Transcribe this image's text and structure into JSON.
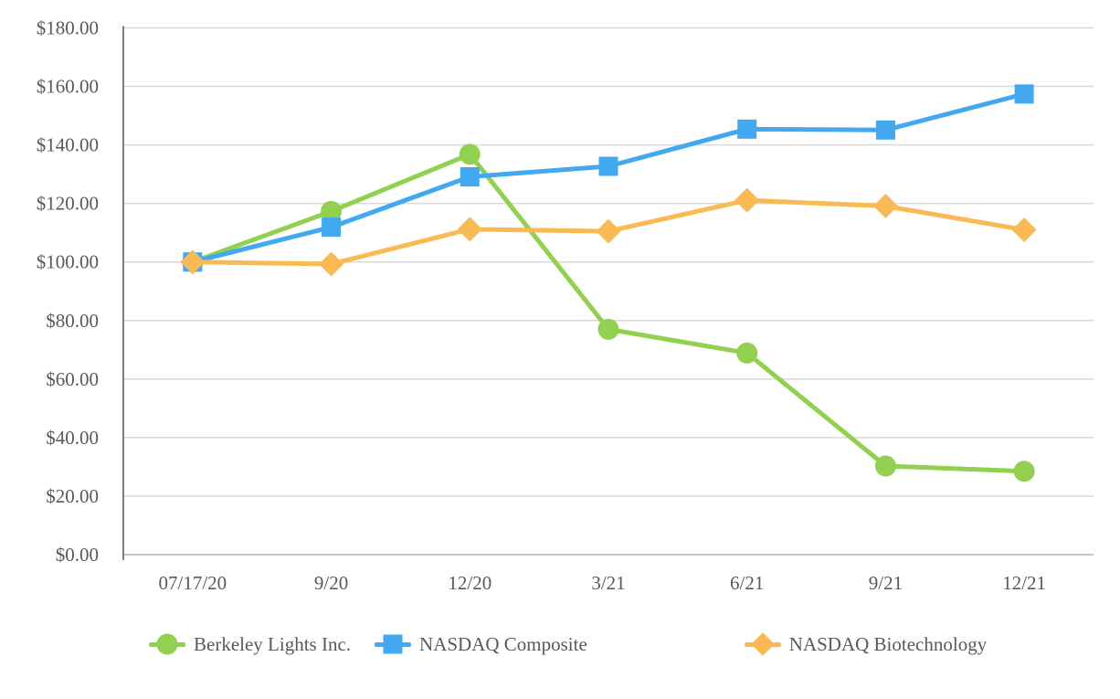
{
  "chart_data": {
    "type": "line",
    "title": "",
    "categories": [
      "07/17/20",
      "9/20",
      "12/20",
      "3/21",
      "6/21",
      "9/21",
      "12/21"
    ],
    "series": [
      {
        "name": "Berkeley Lights Inc.",
        "marker": "circle",
        "color": "#92D050",
        "values": [
          100,
          117.3,
          136.8,
          77.0,
          68.9,
          30.3,
          28.5
        ]
      },
      {
        "name": "NASDAQ Composite",
        "marker": "square",
        "color": "#42A9F1",
        "values": [
          100,
          111.9,
          129.1,
          132.7,
          145.4,
          145.1,
          157.4
        ]
      },
      {
        "name": "NASDAQ Biotechnology",
        "marker": "diamond",
        "color": "#F9BA54",
        "values": [
          100,
          99.3,
          111.2,
          110.5,
          121.1,
          119.1,
          111.0
        ]
      }
    ],
    "ylim": [
      0,
      180
    ],
    "y_tick_step": 20,
    "y_tick_labels": [
      "$0.00",
      "$20.00",
      "$40.00",
      "$60.00",
      "$80.00",
      "$100.00",
      "$120.00",
      "$140.00",
      "$160.00",
      "$180.00"
    ],
    "grid": true,
    "legend_position": "bottom"
  },
  "colors": {
    "gridline": "#D9D9D9",
    "axis_vertical": "#7F7F7F",
    "axis_horizontal": "#BFBFBF",
    "tick_label": "#595959"
  }
}
